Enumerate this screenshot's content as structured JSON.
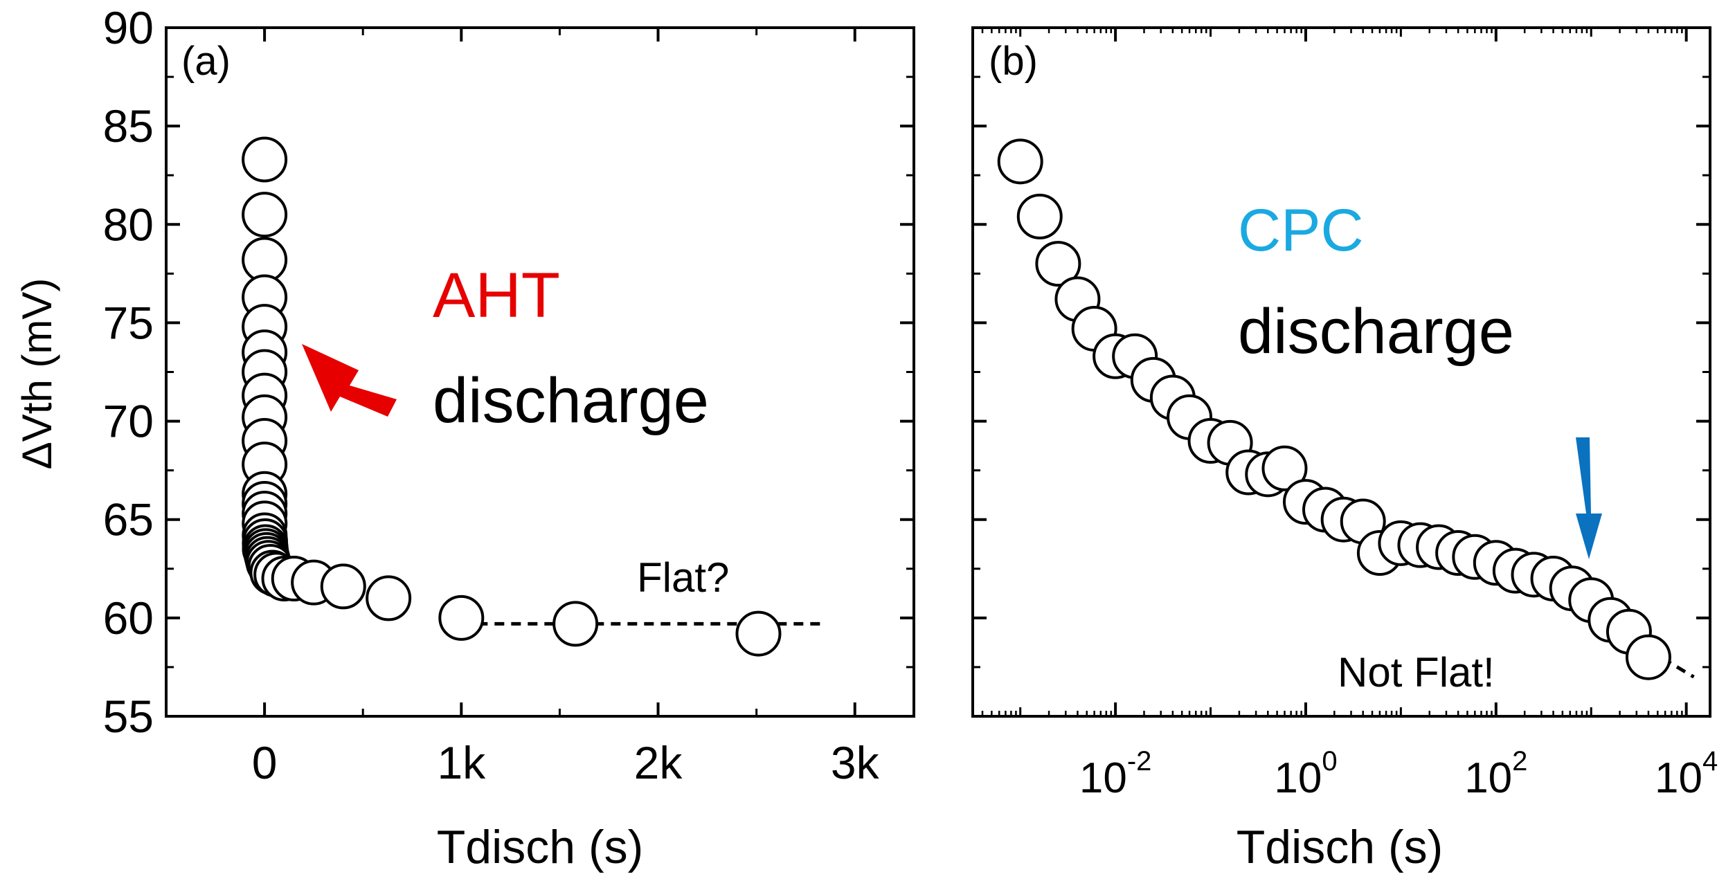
{
  "chart_data": [
    {
      "type": "scatter",
      "panel_label": "(a)",
      "xscale": "linear",
      "xlim": [
        -500,
        3300
      ],
      "ylim": [
        55,
        90
      ],
      "xticks": [
        0,
        1000,
        2000,
        3000
      ],
      "xtick_labels": [
        "0",
        "1k",
        "2k",
        "3k"
      ],
      "yticks": [
        55,
        60,
        65,
        70,
        75,
        80,
        85,
        90
      ],
      "ytick_labels": [
        "55",
        "60",
        "65",
        "70",
        "75",
        "80",
        "85",
        "90"
      ],
      "xlabel": "Tdisch (s)",
      "ylabel": "ΔVth (mV)",
      "series": [
        {
          "name": "ΔVth",
          "x": [
            0.001,
            0.002,
            0.004,
            0.006,
            0.01,
            0.015,
            0.02,
            0.03,
            0.05,
            0.07,
            0.1,
            0.15,
            0.2,
            0.3,
            0.5,
            0.7,
            1,
            1.5,
            2,
            3,
            5,
            7,
            10,
            15,
            20,
            30,
            40,
            60,
            100,
            150,
            250,
            400,
            630,
            1000,
            1580,
            2510
          ],
          "y": [
            83.3,
            80.5,
            78.2,
            76.3,
            74.8,
            73.5,
            72.5,
            71.3,
            70.2,
            69.0,
            67.8,
            66.3,
            65.8,
            65.3,
            64.8,
            64.2,
            63.8,
            63.5,
            63.5,
            63.9,
            63.6,
            63.4,
            63.2,
            63.0,
            62.8,
            62.6,
            62.3,
            62.2,
            62.0,
            62.0,
            61.8,
            61.6,
            61.0,
            60.0,
            59.7,
            59.2
          ]
        }
      ],
      "annotations": {
        "title_red": "AHT",
        "title_black": "discharge",
        "flat_label": "Flat?",
        "guide_line": {
          "x": [
            1000,
            2850
          ],
          "y": [
            59.7,
            59.7
          ]
        }
      },
      "colors": {
        "red": "#e60000",
        "marker_edge": "#000000",
        "marker_fill": "#ffffff"
      }
    },
    {
      "type": "scatter",
      "panel_label": "(b)",
      "xscale": "log",
      "xlim_log10": [
        -3.5,
        4.25
      ],
      "ylim": [
        55,
        90
      ],
      "major_xticks_log10": [
        -2,
        0,
        2,
        4
      ],
      "xtick_labels": [
        {
          "base": "10",
          "exp": "-2"
        },
        {
          "base": "10",
          "exp": "0"
        },
        {
          "base": "10",
          "exp": "2"
        },
        {
          "base": "10",
          "exp": "4"
        }
      ],
      "yticks": [
        55,
        60,
        65,
        70,
        75,
        80,
        85,
        90
      ],
      "xlabel": "Tdisch (s)",
      "series": [
        {
          "name": "ΔVth",
          "x": [
            0.001,
            0.0016,
            0.0025,
            0.004,
            0.006,
            0.01,
            0.016,
            0.025,
            0.04,
            0.06,
            0.1,
            0.16,
            0.25,
            0.4,
            0.6,
            1,
            1.6,
            2.5,
            4,
            6,
            10,
            16,
            25,
            40,
            60,
            100,
            160,
            250,
            400,
            630,
            1000,
            1600,
            2500,
            4000
          ],
          "y": [
            83.2,
            80.4,
            78.0,
            76.2,
            74.7,
            73.3,
            73.3,
            72.1,
            71.2,
            70.2,
            69.0,
            68.9,
            67.4,
            67.3,
            67.6,
            65.9,
            65.5,
            65.0,
            64.9,
            63.3,
            63.8,
            63.7,
            63.6,
            63.3,
            63.1,
            62.8,
            62.4,
            62.2,
            62.0,
            61.5,
            60.9,
            59.9,
            59.3,
            58.0
          ]
        }
      ],
      "annotations": {
        "title_blue": "CPC",
        "title_black": "discharge",
        "not_flat_label": "Not Flat!",
        "guide_line": {
          "x": [
            1000,
            12000
          ],
          "y": [
            60.1,
            57.0
          ]
        }
      },
      "colors": {
        "cyan": "#1aa9e1",
        "arrow_blue": "#0b72c0",
        "marker_edge": "#000000",
        "marker_fill": "#ffffff"
      }
    }
  ]
}
